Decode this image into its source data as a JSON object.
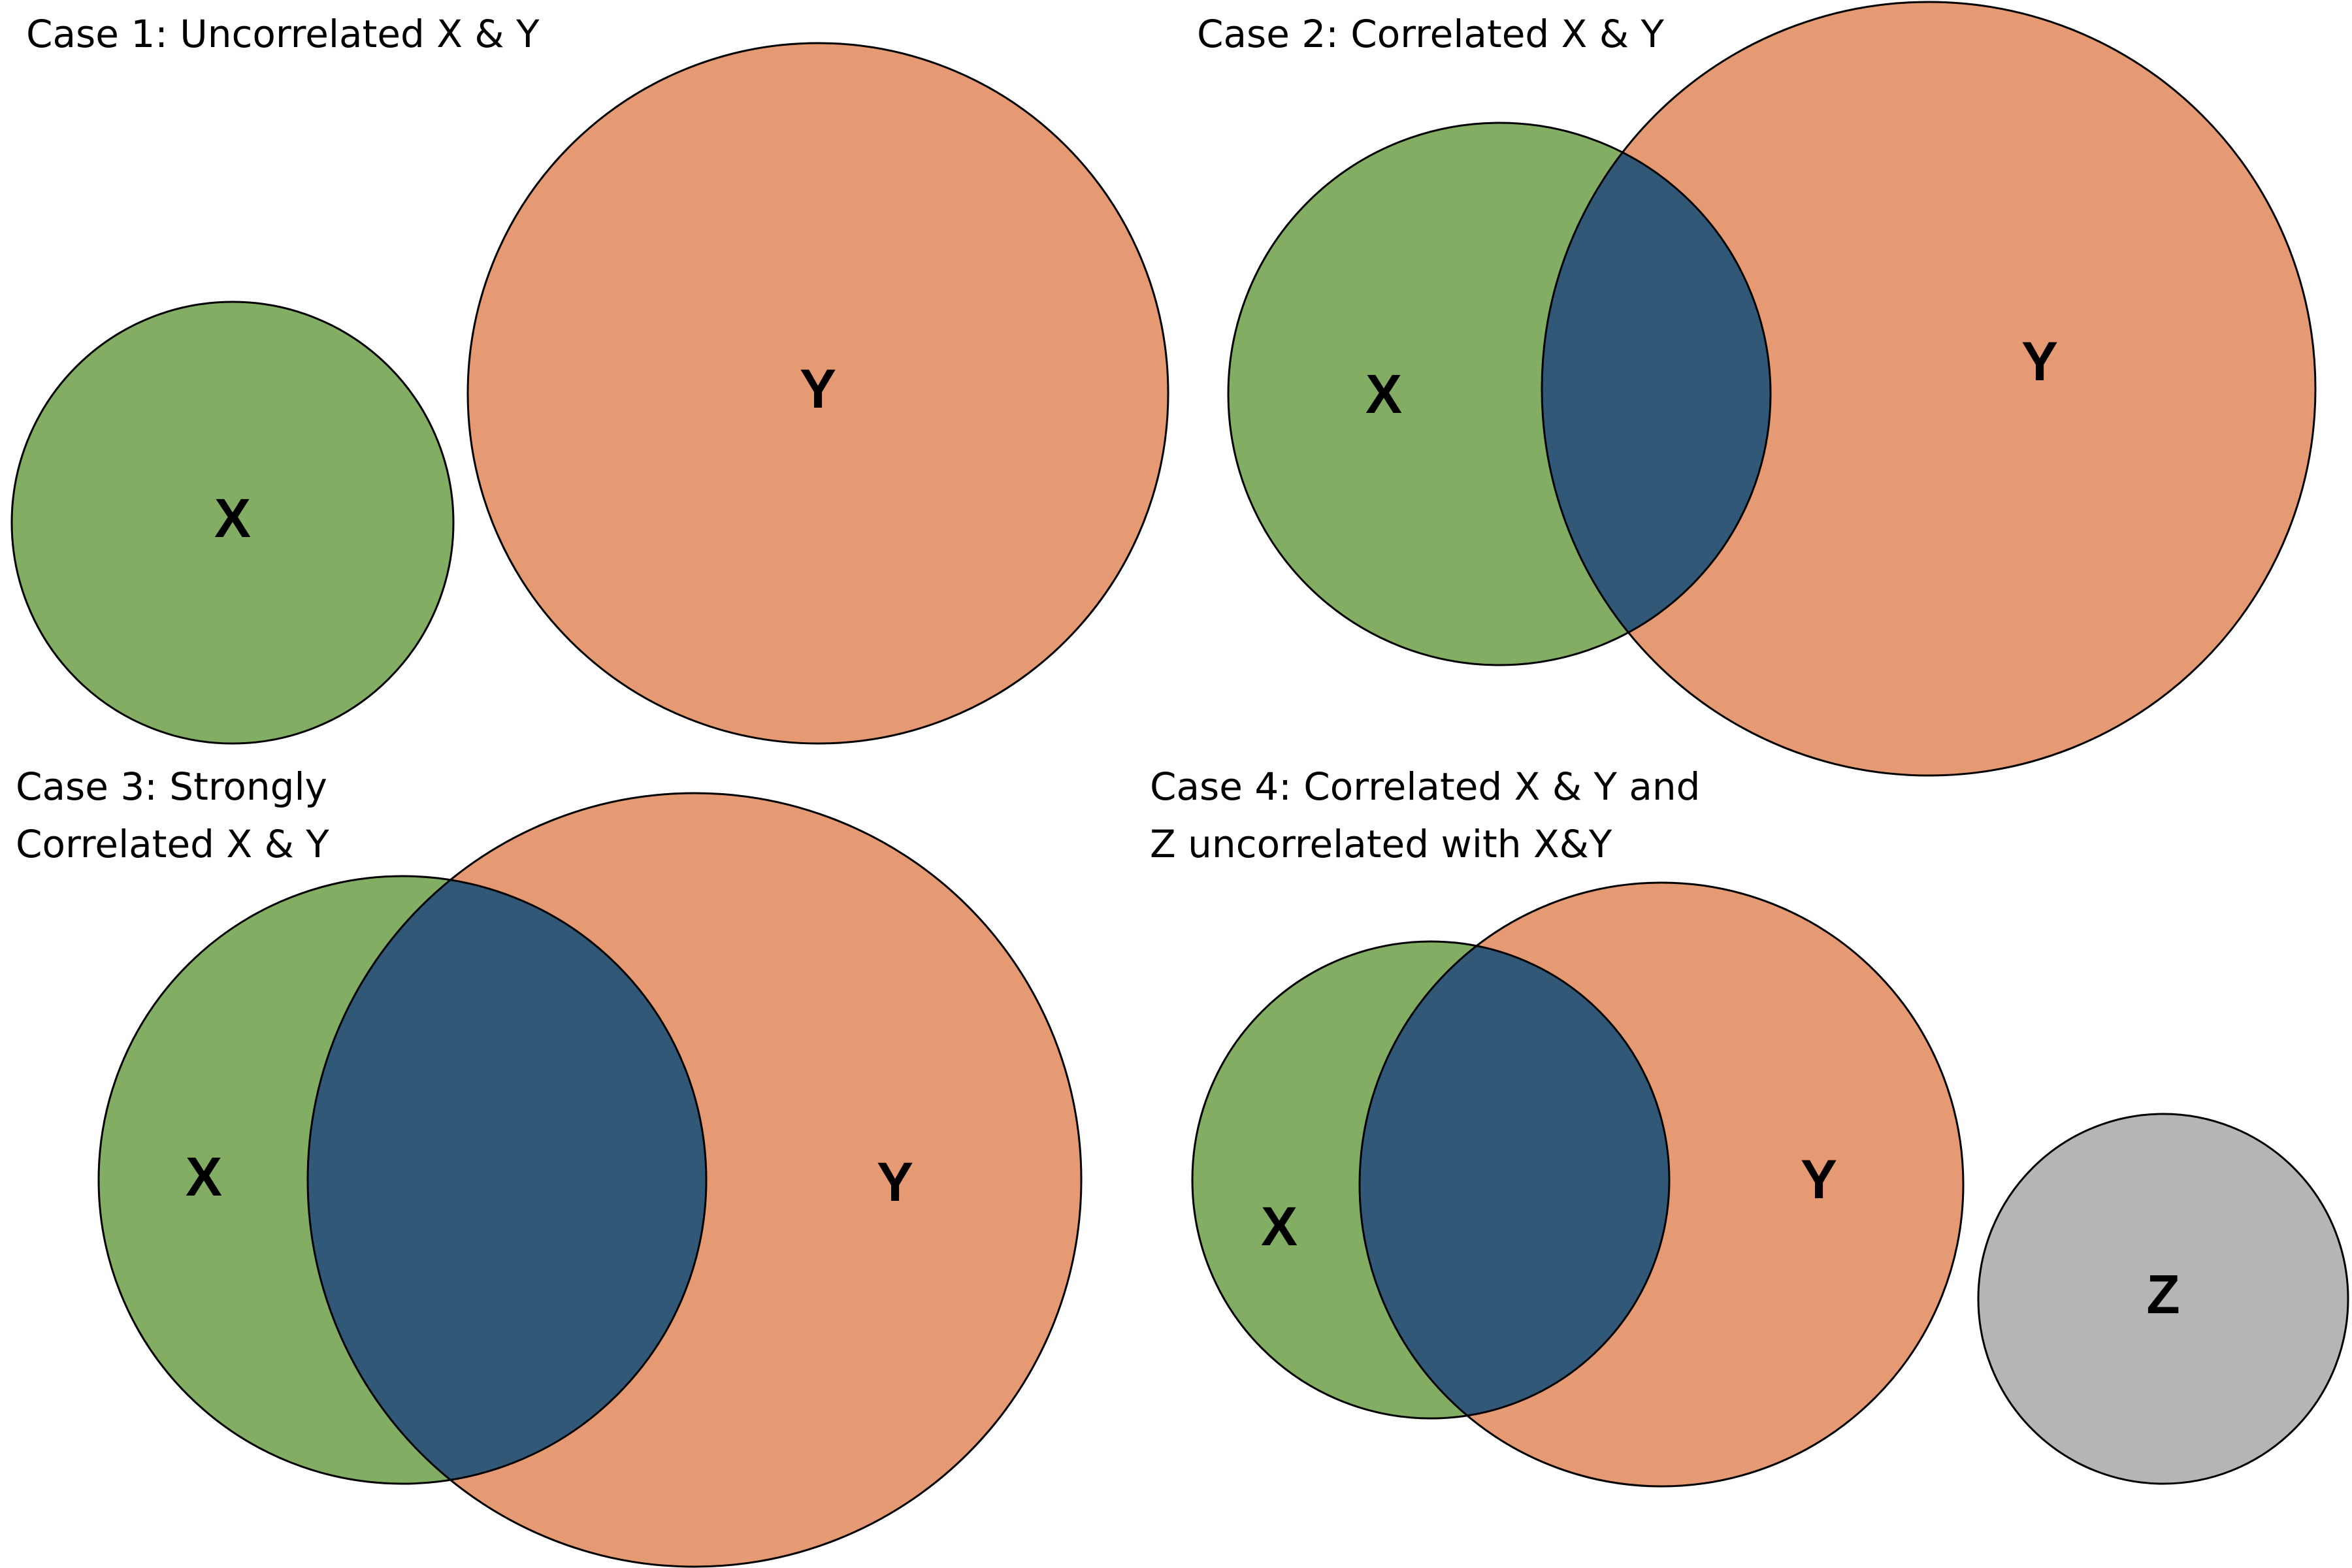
{
  "colors": {
    "x": "#82ad63",
    "y": "#e69a73",
    "overlap": "#325877",
    "z": "#b5b5b5",
    "stroke": "#000000"
  },
  "cases": [
    {
      "title_lines": [
        "Case 1: Uncorrelated X & Y"
      ],
      "labels": {
        "x": "X",
        "y": "Y"
      }
    },
    {
      "title_lines": [
        "Case 2: Correlated X & Y"
      ],
      "labels": {
        "x": "X",
        "y": "Y"
      }
    },
    {
      "title_lines": [
        "Case 3: Strongly",
        "Correlated X & Y"
      ],
      "labels": {
        "x": "X",
        "y": "Y"
      }
    },
    {
      "title_lines": [
        "Case 4: Correlated X & Y and",
        "Z uncorrelated with X&Y"
      ],
      "labels": {
        "x": "X",
        "y": "Y",
        "z": "Z"
      }
    }
  ]
}
